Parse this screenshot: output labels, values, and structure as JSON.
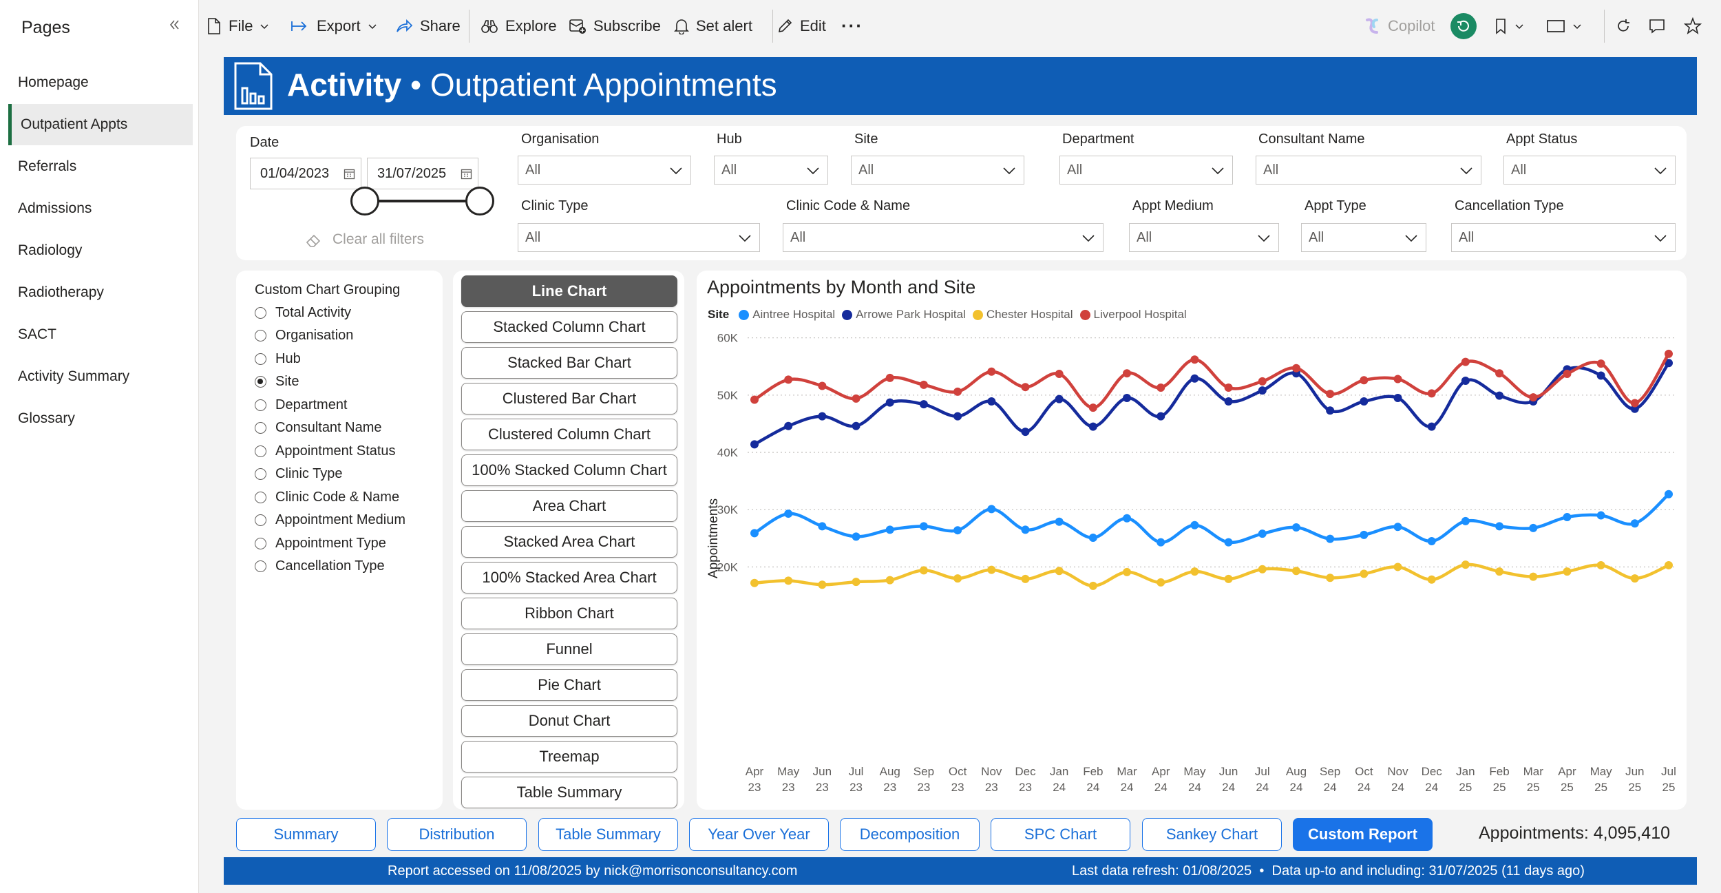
{
  "sidebar": {
    "title": "Pages",
    "items": [
      {
        "label": "Homepage"
      },
      {
        "label": "Outpatient Appts",
        "active": true
      },
      {
        "label": "Referrals"
      },
      {
        "label": "Admissions"
      },
      {
        "label": "Radiology"
      },
      {
        "label": "Radiotherapy"
      },
      {
        "label": "SACT"
      },
      {
        "label": "Activity Summary"
      },
      {
        "label": "Glossary"
      }
    ]
  },
  "toolbar": {
    "file": "File",
    "export": "Export",
    "share": "Share",
    "explore": "Explore",
    "subscribe": "Subscribe",
    "set_alert": "Set alert",
    "edit": "Edit",
    "more": "···",
    "copilot": "Copilot"
  },
  "banner": {
    "title_bold": "Activity",
    "separator": "•",
    "title_rest": "Outpatient Appointments",
    "color": "#0f5db5"
  },
  "filters": {
    "date": {
      "label": "Date",
      "start": "01/04/2023",
      "end": "31/07/2025"
    },
    "clear_all": "Clear all filters",
    "dropdowns": [
      {
        "label": "Organisation",
        "value": "All"
      },
      {
        "label": "Hub",
        "value": "All"
      },
      {
        "label": "Site",
        "value": "All"
      },
      {
        "label": "Department",
        "value": "All"
      },
      {
        "label": "Consultant Name",
        "value": "All"
      },
      {
        "label": "Appt Status",
        "value": "All"
      },
      {
        "label": "Clinic Type",
        "value": "All"
      },
      {
        "label": "Clinic Code & Name",
        "value": "All"
      },
      {
        "label": "Appt Medium",
        "value": "All"
      },
      {
        "label": "Appt Type",
        "value": "All"
      },
      {
        "label": "Cancellation Type",
        "value": "All"
      }
    ]
  },
  "grouping": {
    "title": "Custom Chart Grouping",
    "options": [
      {
        "label": "Total Activity",
        "selected": false
      },
      {
        "label": "Organisation",
        "selected": false
      },
      {
        "label": "Hub",
        "selected": false
      },
      {
        "label": "Site",
        "selected": true
      },
      {
        "label": "Department",
        "selected": false
      },
      {
        "label": "Consultant Name",
        "selected": false
      },
      {
        "label": "Appointment Status",
        "selected": false
      },
      {
        "label": "Clinic Type",
        "selected": false
      },
      {
        "label": "Clinic Code & Name",
        "selected": false
      },
      {
        "label": "Appointment Medium",
        "selected": false
      },
      {
        "label": "Appointment Type",
        "selected": false
      },
      {
        "label": "Cancellation Type",
        "selected": false
      }
    ]
  },
  "chart_types": [
    {
      "label": "Line Chart",
      "selected": true
    },
    {
      "label": "Stacked Column Chart"
    },
    {
      "label": "Stacked Bar Chart"
    },
    {
      "label": "Clustered Bar Chart"
    },
    {
      "label": "Clustered Column Chart"
    },
    {
      "label": "100% Stacked Column Chart"
    },
    {
      "label": "Area Chart"
    },
    {
      "label": "Stacked Area Chart"
    },
    {
      "label": "100% Stacked Area Chart"
    },
    {
      "label": "Ribbon Chart"
    },
    {
      "label": "Funnel"
    },
    {
      "label": "Pie Chart"
    },
    {
      "label": "Donut Chart"
    },
    {
      "label": "Treemap"
    },
    {
      "label": "Table Summary"
    }
  ],
  "chart_data": {
    "type": "line",
    "title": "Appointments by Month and Site",
    "legend_title": "Site",
    "legend_position": "top-left",
    "ylabel": "Appointments",
    "xlabel": "",
    "ylim": [
      12000,
      62000
    ],
    "yticks": [
      20000,
      30000,
      40000,
      50000,
      60000
    ],
    "ytick_labels": [
      "20K",
      "30K",
      "40K",
      "50K",
      "60K"
    ],
    "grid": true,
    "x": [
      [
        "Apr",
        "23"
      ],
      [
        "May",
        "23"
      ],
      [
        "Jun",
        "23"
      ],
      [
        "Jul",
        "23"
      ],
      [
        "Aug",
        "23"
      ],
      [
        "Sep",
        "23"
      ],
      [
        "Oct",
        "23"
      ],
      [
        "Nov",
        "23"
      ],
      [
        "Dec",
        "23"
      ],
      [
        "Jan",
        "24"
      ],
      [
        "Feb",
        "24"
      ],
      [
        "Mar",
        "24"
      ],
      [
        "Apr",
        "24"
      ],
      [
        "May",
        "24"
      ],
      [
        "Jun",
        "24"
      ],
      [
        "Jul",
        "24"
      ],
      [
        "Aug",
        "24"
      ],
      [
        "Sep",
        "24"
      ],
      [
        "Oct",
        "24"
      ],
      [
        "Nov",
        "24"
      ],
      [
        "Dec",
        "24"
      ],
      [
        "Jan",
        "25"
      ],
      [
        "Feb",
        "25"
      ],
      [
        "Mar",
        "25"
      ],
      [
        "Apr",
        "25"
      ],
      [
        "May",
        "25"
      ],
      [
        "Jun",
        "25"
      ],
      [
        "Jul",
        "25"
      ]
    ],
    "series": [
      {
        "name": "Aintree Hospital",
        "color": "#1a8fff",
        "values": [
          25900,
          29300,
          27100,
          25300,
          26500,
          27100,
          26400,
          30100,
          26500,
          27900,
          25100,
          28500,
          24300,
          27300,
          24300,
          25800,
          26900,
          24900,
          25600,
          27000,
          24500,
          28000,
          27100,
          26800,
          28700,
          29000,
          27600,
          32700
        ]
      },
      {
        "name": "Arrowe Park Hospital",
        "color": "#152b9c",
        "values": [
          41400,
          44600,
          46300,
          44600,
          48700,
          48400,
          46300,
          48900,
          43600,
          49300,
          44500,
          49500,
          46300,
          52900,
          48900,
          50800,
          53800,
          47300,
          48900,
          49500,
          44500,
          52500,
          49900,
          48900,
          54500,
          53400,
          47600,
          55600
        ]
      },
      {
        "name": "Chester Hospital",
        "color": "#f2c12e",
        "values": [
          17200,
          17600,
          16900,
          17400,
          17700,
          19400,
          18000,
          19500,
          17900,
          19300,
          16700,
          19100,
          17300,
          19200,
          17900,
          19600,
          19300,
          18100,
          18800,
          20000,
          17800,
          20400,
          19200,
          18300,
          19200,
          20300,
          18000,
          20300
        ]
      },
      {
        "name": "Liverpool Hospital",
        "color": "#d0413c",
        "values": [
          49200,
          52700,
          51600,
          49400,
          53000,
          51800,
          50600,
          54100,
          51400,
          53700,
          47800,
          53800,
          51300,
          56200,
          51300,
          52400,
          54700,
          50200,
          52600,
          52800,
          50300,
          55800,
          53800,
          49600,
          53700,
          55500,
          48600,
          57200
        ]
      }
    ]
  },
  "bottom_tabs": [
    {
      "label": "Summary"
    },
    {
      "label": "Distribution"
    },
    {
      "label": "Table Summary"
    },
    {
      "label": "Year Over Year"
    },
    {
      "label": "Decomposition"
    },
    {
      "label": "SPC Chart"
    },
    {
      "label": "Sankey Chart"
    },
    {
      "label": "Custom Report",
      "selected": true
    }
  ],
  "total": {
    "label": "Appointments:",
    "value": "4,095,410"
  },
  "footer": {
    "accessed": "Report accessed on 11/08/2025 by nick@morrisonconsultancy.com",
    "refresh": "Last data refresh: 01/08/2025  •  Data up-to and including: 31/07/2025 (11 days ago)"
  }
}
